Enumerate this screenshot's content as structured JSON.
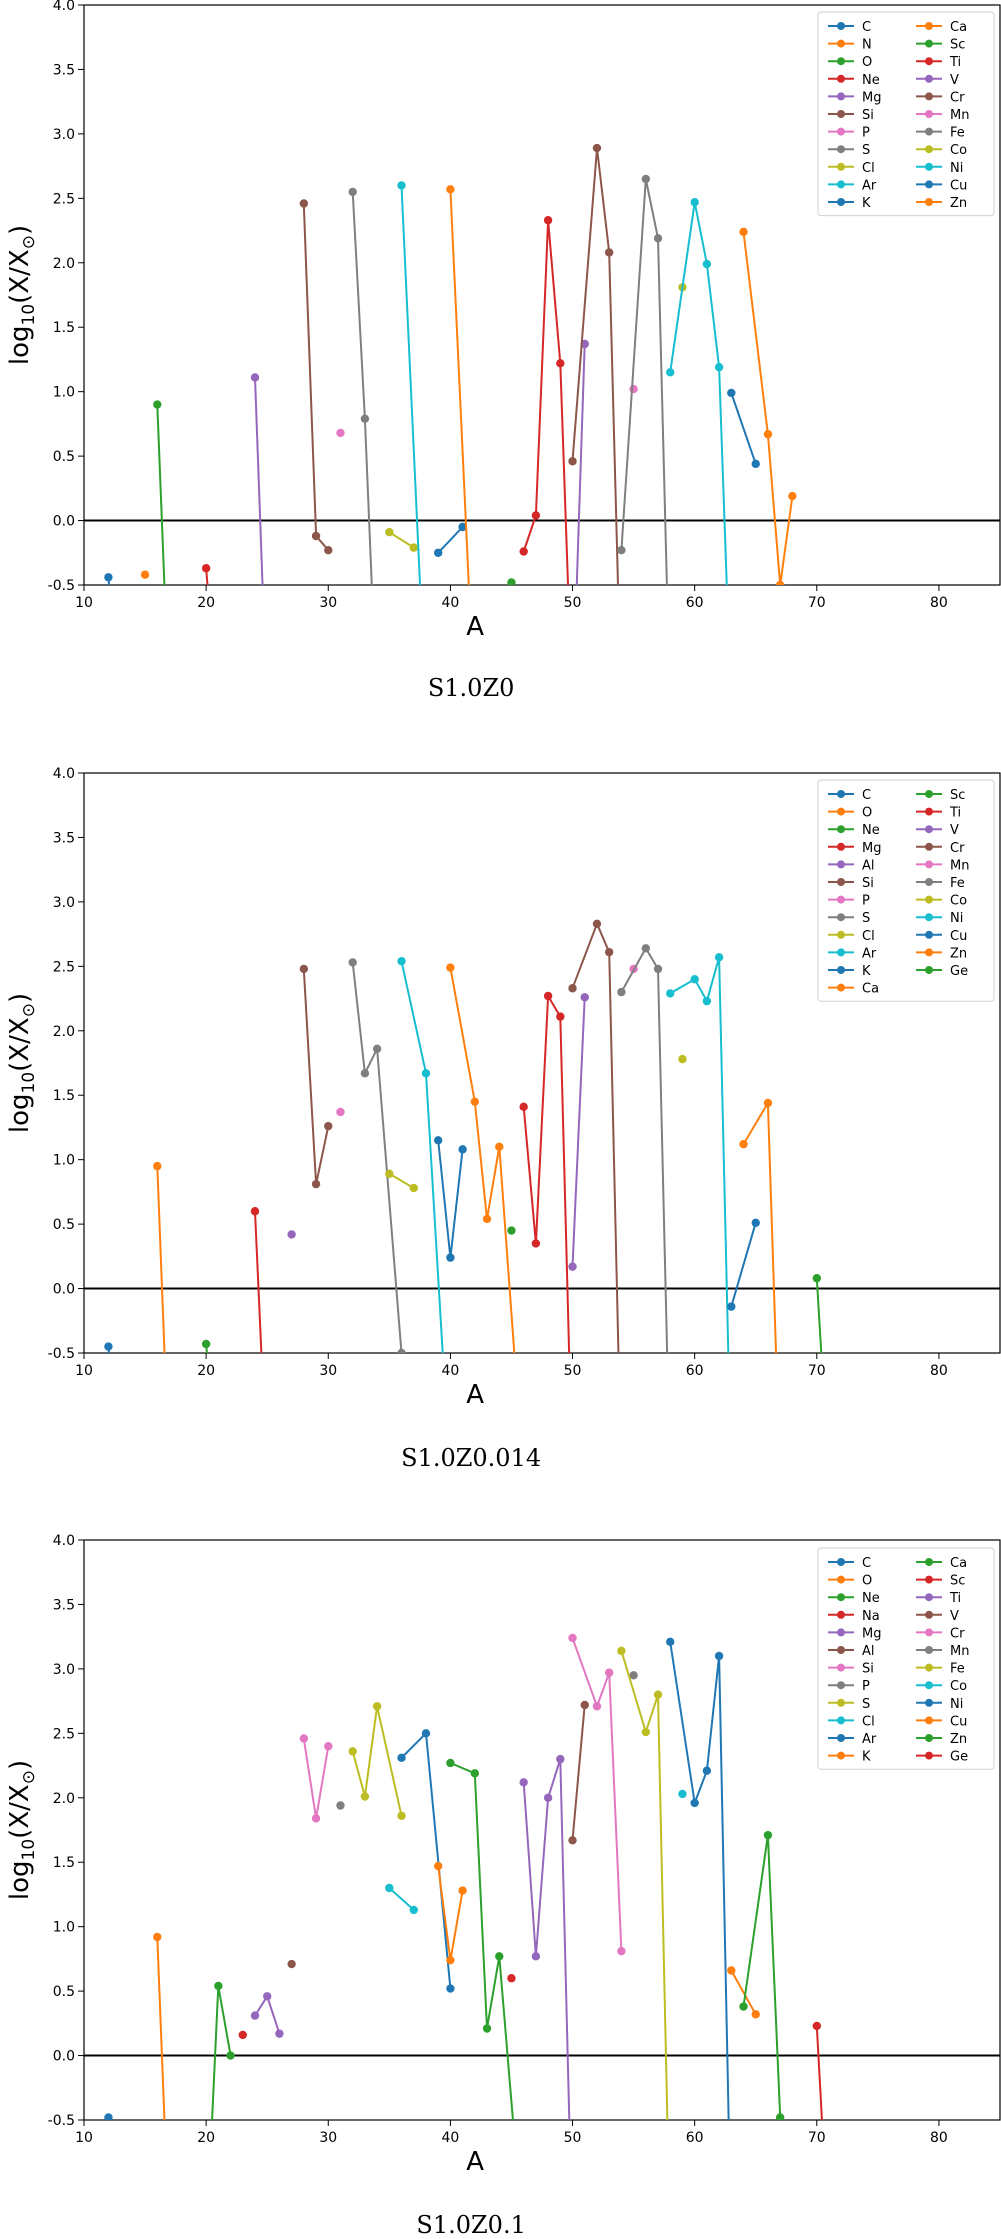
{
  "palette": [
    "#1f77b4",
    "#ff7f0e",
    "#2ca02c",
    "#d62728",
    "#9467bd",
    "#8c564b",
    "#e377c2",
    "#7f7f7f",
    "#bcbd22",
    "#17becf"
  ],
  "chart_data": [
    {
      "type": "line",
      "caption": "S1.0Z0",
      "xlabel": "A",
      "ylabel": "log10(X/X⊙)",
      "xlim": [
        10,
        85
      ],
      "ylim": [
        -0.5,
        4.0
      ],
      "xticks": [
        10,
        20,
        30,
        40,
        50,
        60,
        70,
        80
      ],
      "yticks": [
        -0.5,
        0.0,
        0.5,
        1.0,
        1.5,
        2.0,
        2.5,
        3.0,
        3.5,
        4.0
      ],
      "zero_line": 0.0,
      "legend": {
        "position": "top-right",
        "columns": 2
      },
      "series": [
        {
          "name": "C",
          "color": "#1f77b4",
          "x": [
            12,
            13
          ],
          "y": [
            -0.44,
            -1.5
          ]
        },
        {
          "name": "N",
          "color": "#ff7f0e",
          "x": [
            15
          ],
          "y": [
            -0.42
          ]
        },
        {
          "name": "O",
          "color": "#2ca02c",
          "x": [
            16,
            17
          ],
          "y": [
            0.9,
            -1.5
          ]
        },
        {
          "name": "Ne",
          "color": "#d62728",
          "x": [
            20,
            21
          ],
          "y": [
            -0.37,
            -1.5
          ]
        },
        {
          "name": "Mg",
          "color": "#9467bd",
          "x": [
            24,
            25
          ],
          "y": [
            1.11,
            -1.5
          ]
        },
        {
          "name": "Si",
          "color": "#8c564b",
          "x": [
            28,
            29,
            30
          ],
          "y": [
            2.46,
            -0.12,
            -0.23
          ]
        },
        {
          "name": "P",
          "color": "#e377c2",
          "x": [
            31
          ],
          "y": [
            0.68
          ]
        },
        {
          "name": "S",
          "color": "#7f7f7f",
          "x": [
            32,
            33,
            34
          ],
          "y": [
            2.55,
            0.79,
            -1.5
          ]
        },
        {
          "name": "Cl",
          "color": "#bcbd22",
          "x": [
            35,
            37
          ],
          "y": [
            -0.09,
            -0.21
          ]
        },
        {
          "name": "Ar",
          "color": "#17becf",
          "x": [
            36,
            38
          ],
          "y": [
            2.6,
            -1.5
          ]
        },
        {
          "name": "K",
          "color": "#1f77b4",
          "x": [
            39,
            41
          ],
          "y": [
            -0.25,
            -0.05
          ]
        },
        {
          "name": "Ca",
          "color": "#ff7f0e",
          "x": [
            40,
            42
          ],
          "y": [
            2.57,
            -1.5
          ]
        },
        {
          "name": "Sc",
          "color": "#2ca02c",
          "x": [
            45
          ],
          "y": [
            -0.48
          ]
        },
        {
          "name": "Ti",
          "color": "#d62728",
          "x": [
            46,
            47,
            48,
            49,
            50
          ],
          "y": [
            -0.24,
            0.04,
            2.33,
            1.22,
            -1.5
          ]
        },
        {
          "name": "V",
          "color": "#9467bd",
          "x": [
            50,
            51
          ],
          "y": [
            -1.5,
            1.37
          ]
        },
        {
          "name": "Cr",
          "color": "#8c564b",
          "x": [
            50,
            52,
            53,
            54
          ],
          "y": [
            0.46,
            2.89,
            2.08,
            -1.5
          ]
        },
        {
          "name": "Mn",
          "color": "#e377c2",
          "x": [
            55
          ],
          "y": [
            1.02
          ]
        },
        {
          "name": "Fe",
          "color": "#7f7f7f",
          "x": [
            54,
            56,
            57,
            58
          ],
          "y": [
            -0.23,
            2.65,
            2.19,
            -1.5
          ]
        },
        {
          "name": "Co",
          "color": "#bcbd22",
          "x": [
            59
          ],
          "y": [
            1.81
          ]
        },
        {
          "name": "Ni",
          "color": "#17becf",
          "x": [
            58,
            60,
            61,
            62,
            63
          ],
          "y": [
            1.15,
            2.47,
            1.99,
            1.19,
            -1.5
          ]
        },
        {
          "name": "Cu",
          "color": "#1f77b4",
          "x": [
            63,
            65
          ],
          "y": [
            0.99,
            0.44
          ]
        },
        {
          "name": "Zn",
          "color": "#ff7f0e",
          "x": [
            64,
            66,
            67,
            68
          ],
          "y": [
            2.24,
            0.67,
            -0.5,
            0.19
          ]
        }
      ]
    },
    {
      "type": "line",
      "caption": "S1.0Z0.014",
      "xlabel": "A",
      "ylabel": "log10(X/X⊙)",
      "xlim": [
        10,
        85
      ],
      "ylim": [
        -0.5,
        4.0
      ],
      "xticks": [
        10,
        20,
        30,
        40,
        50,
        60,
        70,
        80
      ],
      "yticks": [
        -0.5,
        0.0,
        0.5,
        1.0,
        1.5,
        2.0,
        2.5,
        3.0,
        3.5,
        4.0
      ],
      "zero_line": 0.0,
      "legend": {
        "position": "top-right",
        "columns": 2
      },
      "series": [
        {
          "name": "C",
          "color": "#1f77b4",
          "x": [
            12,
            13
          ],
          "y": [
            -0.45,
            -1.5
          ]
        },
        {
          "name": "O",
          "color": "#ff7f0e",
          "x": [
            16,
            17
          ],
          "y": [
            0.95,
            -1.5
          ]
        },
        {
          "name": "Ne",
          "color": "#2ca02c",
          "x": [
            20,
            21
          ],
          "y": [
            -0.43,
            -1.5
          ]
        },
        {
          "name": "Mg",
          "color": "#d62728",
          "x": [
            24,
            25
          ],
          "y": [
            0.6,
            -1.5
          ]
        },
        {
          "name": "Al",
          "color": "#9467bd",
          "x": [
            27
          ],
          "y": [
            0.42
          ]
        },
        {
          "name": "Si",
          "color": "#8c564b",
          "x": [
            28,
            29,
            30
          ],
          "y": [
            2.48,
            0.81,
            1.26
          ]
        },
        {
          "name": "P",
          "color": "#e377c2",
          "x": [
            31
          ],
          "y": [
            1.37
          ]
        },
        {
          "name": "S",
          "color": "#7f7f7f",
          "x": [
            32,
            33,
            34,
            36
          ],
          "y": [
            2.53,
            1.67,
            1.86,
            -0.5
          ]
        },
        {
          "name": "Cl",
          "color": "#bcbd22",
          "x": [
            35,
            37
          ],
          "y": [
            0.89,
            0.78
          ]
        },
        {
          "name": "Ar",
          "color": "#17becf",
          "x": [
            36,
            38,
            40
          ],
          "y": [
            2.54,
            1.67,
            -1.5
          ]
        },
        {
          "name": "K",
          "color": "#1f77b4",
          "x": [
            39,
            40,
            41
          ],
          "y": [
            1.15,
            0.24,
            1.08
          ]
        },
        {
          "name": "Ca",
          "color": "#ff7f0e",
          "x": [
            40,
            42,
            43,
            44,
            46
          ],
          "y": [
            2.49,
            1.45,
            0.54,
            1.1,
            -1.5
          ]
        },
        {
          "name": "Sc",
          "color": "#2ca02c",
          "x": [
            45
          ],
          "y": [
            0.45
          ]
        },
        {
          "name": "Ti",
          "color": "#d62728",
          "x": [
            46,
            47,
            48,
            49,
            50
          ],
          "y": [
            1.41,
            0.35,
            2.27,
            2.11,
            -1.5
          ]
        },
        {
          "name": "V",
          "color": "#9467bd",
          "x": [
            50,
            51
          ],
          "y": [
            0.17,
            2.26
          ]
        },
        {
          "name": "Cr",
          "color": "#8c564b",
          "x": [
            50,
            52,
            53,
            54
          ],
          "y": [
            2.33,
            2.83,
            2.61,
            -1.5
          ]
        },
        {
          "name": "Mn",
          "color": "#e377c2",
          "x": [
            55
          ],
          "y": [
            2.48
          ]
        },
        {
          "name": "Fe",
          "color": "#7f7f7f",
          "x": [
            54,
            56,
            57,
            58
          ],
          "y": [
            2.3,
            2.64,
            2.48,
            -1.5
          ]
        },
        {
          "name": "Co",
          "color": "#bcbd22",
          "x": [
            59
          ],
          "y": [
            1.78
          ]
        },
        {
          "name": "Ni",
          "color": "#17becf",
          "x": [
            58,
            60,
            61,
            62,
            63
          ],
          "y": [
            2.29,
            2.4,
            2.23,
            2.57,
            -1.5
          ]
        },
        {
          "name": "Cu",
          "color": "#1f77b4",
          "x": [
            63,
            65
          ],
          "y": [
            -0.14,
            0.51
          ]
        },
        {
          "name": "Zn",
          "color": "#ff7f0e",
          "x": [
            64,
            66,
            67
          ],
          "y": [
            1.12,
            1.44,
            -1.5
          ]
        },
        {
          "name": "Ge",
          "color": "#2ca02c",
          "x": [
            70,
            71
          ],
          "y": [
            0.08,
            -1.5
          ]
        }
      ]
    },
    {
      "type": "line",
      "caption": "S1.0Z0.1",
      "xlabel": "A",
      "ylabel": "log10(X/X⊙)",
      "xlim": [
        10,
        85
      ],
      "ylim": [
        -0.5,
        4.0
      ],
      "xticks": [
        10,
        20,
        30,
        40,
        50,
        60,
        70,
        80
      ],
      "yticks": [
        -0.5,
        0.0,
        0.5,
        1.0,
        1.5,
        2.0,
        2.5,
        3.0,
        3.5,
        4.0
      ],
      "zero_line": 0.0,
      "legend": {
        "position": "top-right",
        "columns": 2
      },
      "series": [
        {
          "name": "C",
          "color": "#1f77b4",
          "x": [
            12,
            13
          ],
          "y": [
            -0.48,
            -1.5
          ]
        },
        {
          "name": "O",
          "color": "#ff7f0e",
          "x": [
            16,
            17
          ],
          "y": [
            0.92,
            -1.5
          ]
        },
        {
          "name": "Ne",
          "color": "#2ca02c",
          "x": [
            20,
            21,
            22
          ],
          "y": [
            -1.5,
            0.54,
            0.0
          ]
        },
        {
          "name": "Na",
          "color": "#d62728",
          "x": [
            23
          ],
          "y": [
            0.16
          ]
        },
        {
          "name": "Mg",
          "color": "#9467bd",
          "x": [
            24,
            25,
            26
          ],
          "y": [
            0.31,
            0.46,
            0.17
          ]
        },
        {
          "name": "Al",
          "color": "#8c564b",
          "x": [
            27
          ],
          "y": [
            0.71
          ]
        },
        {
          "name": "Si",
          "color": "#e377c2",
          "x": [
            28,
            29,
            30
          ],
          "y": [
            2.46,
            1.84,
            2.4
          ]
        },
        {
          "name": "P",
          "color": "#7f7f7f",
          "x": [
            31
          ],
          "y": [
            1.94
          ]
        },
        {
          "name": "S",
          "color": "#bcbd22",
          "x": [
            32,
            33,
            34,
            36
          ],
          "y": [
            2.36,
            2.01,
            2.71,
            1.86
          ]
        },
        {
          "name": "Cl",
          "color": "#17becf",
          "x": [
            35,
            37
          ],
          "y": [
            1.3,
            1.13
          ]
        },
        {
          "name": "Ar",
          "color": "#1f77b4",
          "x": [
            36,
            38,
            40
          ],
          "y": [
            2.31,
            2.5,
            0.52
          ]
        },
        {
          "name": "K",
          "color": "#ff7f0e",
          "x": [
            39,
            40,
            41
          ],
          "y": [
            1.47,
            0.74,
            1.28
          ]
        },
        {
          "name": "Ca",
          "color": "#2ca02c",
          "x": [
            40,
            42,
            43,
            44,
            46
          ],
          "y": [
            2.27,
            2.19,
            0.21,
            0.77,
            -1.5
          ]
        },
        {
          "name": "Sc",
          "color": "#d62728",
          "x": [
            45
          ],
          "y": [
            0.6
          ]
        },
        {
          "name": "Ti",
          "color": "#9467bd",
          "x": [
            46,
            47,
            48,
            49,
            50
          ],
          "y": [
            2.12,
            0.77,
            2.0,
            2.3,
            -1.5
          ]
        },
        {
          "name": "V",
          "color": "#8c564b",
          "x": [
            50,
            51
          ],
          "y": [
            1.67,
            2.72
          ]
        },
        {
          "name": "Cr",
          "color": "#e377c2",
          "x": [
            50,
            52,
            53,
            54
          ],
          "y": [
            3.24,
            2.71,
            2.97,
            0.81
          ]
        },
        {
          "name": "Mn",
          "color": "#7f7f7f",
          "x": [
            55
          ],
          "y": [
            2.95
          ]
        },
        {
          "name": "Fe",
          "color": "#bcbd22",
          "x": [
            54,
            56,
            57,
            58
          ],
          "y": [
            3.14,
            2.51,
            2.8,
            -1.5
          ]
        },
        {
          "name": "Co",
          "color": "#17becf",
          "x": [
            59
          ],
          "y": [
            2.03
          ]
        },
        {
          "name": "Ni",
          "color": "#1f77b4",
          "x": [
            58,
            60,
            61,
            62,
            63
          ],
          "y": [
            3.21,
            1.96,
            2.21,
            3.1,
            -1.5
          ]
        },
        {
          "name": "Cu",
          "color": "#ff7f0e",
          "x": [
            63,
            65
          ],
          "y": [
            0.66,
            0.32
          ]
        },
        {
          "name": "Zn",
          "color": "#2ca02c",
          "x": [
            64,
            66,
            67
          ],
          "y": [
            0.38,
            1.71,
            -0.48
          ]
        },
        {
          "name": "Ge",
          "color": "#d62728",
          "x": [
            70,
            71
          ],
          "y": [
            0.23,
            -1.5
          ]
        }
      ]
    }
  ]
}
